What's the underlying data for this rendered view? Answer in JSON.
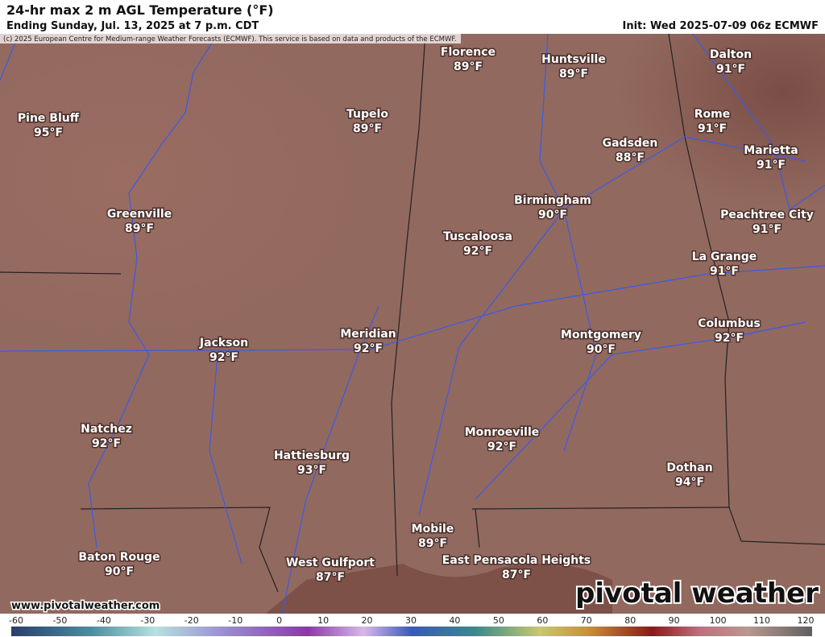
{
  "header": {
    "title": "24-hr max 2 m AGL Temperature (°F)",
    "subtitle": "Ending Sunday, Jul. 13, 2025 at 7 p.m. CDT",
    "init": "Init: Wed 2025-07-09 06z ECMWF",
    "copyright": "(c) 2025 European Centre for Medium-range Weather Forecasts (ECMWF). This service is based on data and products of the ECMWF."
  },
  "cities": [
    {
      "name": "Florence",
      "temp": "89°F"
    },
    {
      "name": "Huntsville",
      "temp": "89°F"
    },
    {
      "name": "Dalton",
      "temp": "91°F"
    },
    {
      "name": "Pine Bluff",
      "temp": "95°F"
    },
    {
      "name": "Tupelo",
      "temp": "89°F"
    },
    {
      "name": "Rome",
      "temp": "91°F"
    },
    {
      "name": "Gadsden",
      "temp": "88°F"
    },
    {
      "name": "Marietta",
      "temp": "91°F"
    },
    {
      "name": "Birmingham",
      "temp": "90°F"
    },
    {
      "name": "Greenville",
      "temp": "89°F"
    },
    {
      "name": "Peachtree City",
      "temp": "91°F"
    },
    {
      "name": "Tuscaloosa",
      "temp": "92°F"
    },
    {
      "name": "La Grange",
      "temp": "91°F"
    },
    {
      "name": "Columbus",
      "temp": "92°F"
    },
    {
      "name": "Meridian",
      "temp": "92°F"
    },
    {
      "name": "Montgomery",
      "temp": "90°F"
    },
    {
      "name": "Jackson",
      "temp": "92°F"
    },
    {
      "name": "Natchez",
      "temp": "92°F"
    },
    {
      "name": "Monroeville",
      "temp": "92°F"
    },
    {
      "name": "Hattiesburg",
      "temp": "93°F"
    },
    {
      "name": "Dothan",
      "temp": "94°F"
    },
    {
      "name": "Mobile",
      "temp": "89°F"
    },
    {
      "name": "Baton Rouge",
      "temp": "90°F"
    },
    {
      "name": "West Gulfport",
      "temp": "87°F"
    },
    {
      "name": "East Pensacola Heights",
      "temp": "87°F"
    }
  ],
  "colorbar": {
    "ticks": [
      -60,
      -50,
      -40,
      -30,
      -20,
      -10,
      0,
      10,
      20,
      30,
      40,
      50,
      60,
      70,
      80,
      90,
      100,
      110,
      120
    ]
  },
  "footer": {
    "website": "www.pivotalweather.com",
    "logo": "pivotal weather"
  }
}
